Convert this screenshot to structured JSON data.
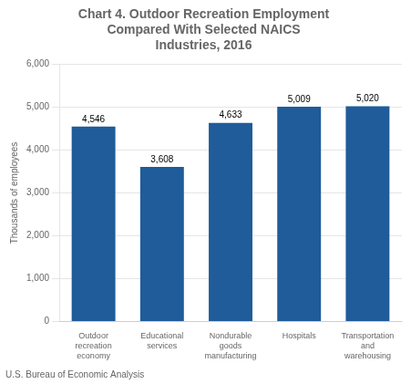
{
  "chart_data": {
    "type": "bar",
    "title": "Chart 4. Outdoor Recreation Employment\nCompared With Selected NAICS\nIndustries, 2016",
    "ylabel": "Thousands of employees",
    "annotations": [
      "U.S. Bureau of Economic Analysis"
    ],
    "categories": [
      "Outdoor\nrecreation\neconomy",
      "Educational\nservices",
      "Nondurable\ngoods\nmanufacturing",
      "Hospitals",
      "Transportation\nand\nwarehousing"
    ],
    "values": [
      4546,
      3608,
      4633,
      5009,
      5020
    ],
    "value_labels": [
      "4,546",
      "3,608",
      "4,633",
      "5,009",
      "5,020"
    ],
    "data_labels": true,
    "color": "#1F5C99",
    "ylim": [
      0,
      6000
    ],
    "yticks": [
      0,
      {
        "value": 1000,
        "label": "1,000"
      },
      {
        "value": 2000,
        "label": "2,000"
      },
      {
        "value": 3000,
        "label": "3,000"
      },
      {
        "value": 4000,
        "label": "4,000"
      },
      {
        "value": 5000,
        "label": "5,000"
      },
      {
        "value": 6000,
        "label": "6,000"
      }
    ],
    "grid": true
  }
}
